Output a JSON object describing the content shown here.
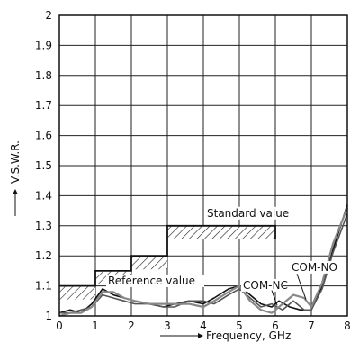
{
  "chart_data": {
    "type": "line",
    "xlabel": "Frequency, GHz",
    "ylabel": "V.S.W.R.",
    "xlim": [
      0,
      8
    ],
    "ylim": [
      1,
      2
    ],
    "x_ticks": [
      "0",
      "1",
      "2",
      "3",
      "4",
      "5",
      "6",
      "7",
      "8"
    ],
    "y_ticks": [
      "1",
      "1.1",
      "1.2",
      "1.3",
      "1.4",
      "1.5",
      "1.6",
      "1.7",
      "1.8",
      "1.9",
      "2"
    ],
    "grid": true,
    "standard_value": {
      "label": "Standard value",
      "steps": [
        {
          "x0": 0,
          "x1": 1,
          "y": 1.1
        },
        {
          "x0": 1,
          "x1": 2,
          "y": 1.15
        },
        {
          "x0": 2,
          "x1": 3,
          "y": 1.2
        },
        {
          "x0": 3,
          "x1": 6,
          "y": 1.3
        }
      ]
    },
    "series": [
      {
        "name": "Reference value",
        "color": "#111111",
        "x": [
          0,
          0.3,
          0.6,
          0.9,
          1.2,
          1.5,
          1.8,
          2.1,
          2.5,
          2.9,
          3.2,
          3.6,
          4.0,
          4.3,
          4.7,
          5.0,
          5.3,
          5.6,
          5.9,
          6.1,
          6.4,
          6.7,
          7.0,
          7.3,
          7.6,
          8.0
        ],
        "y": [
          1.01,
          1.02,
          1.01,
          1.04,
          1.09,
          1.07,
          1.06,
          1.05,
          1.04,
          1.03,
          1.04,
          1.05,
          1.04,
          1.06,
          1.09,
          1.1,
          1.07,
          1.04,
          1.03,
          1.05,
          1.03,
          1.02,
          1.02,
          1.1,
          1.22,
          1.37
        ]
      },
      {
        "name": "COM-NC",
        "color": "#555555",
        "x": [
          0,
          0.3,
          0.6,
          0.9,
          1.2,
          1.5,
          1.8,
          2.1,
          2.5,
          2.9,
          3.2,
          3.6,
          4.0,
          4.3,
          4.7,
          5.0,
          5.3,
          5.6,
          5.9,
          6.2,
          6.5,
          6.8,
          7.0,
          7.3,
          7.6,
          8.0
        ],
        "y": [
          1.01,
          1.01,
          1.02,
          1.03,
          1.07,
          1.06,
          1.05,
          1.04,
          1.04,
          1.03,
          1.03,
          1.05,
          1.05,
          1.04,
          1.07,
          1.09,
          1.06,
          1.03,
          1.04,
          1.02,
          1.05,
          1.02,
          1.02,
          1.09,
          1.21,
          1.34
        ]
      },
      {
        "name": "COM-NO",
        "color": "#888888",
        "x": [
          0,
          0.3,
          0.6,
          0.9,
          1.2,
          1.5,
          1.8,
          2.1,
          2.5,
          2.9,
          3.2,
          3.6,
          4.0,
          4.3,
          4.7,
          5.0,
          5.3,
          5.6,
          5.9,
          6.2,
          6.5,
          6.8,
          7.0,
          7.3,
          7.6,
          8.0
        ],
        "y": [
          1.0,
          1.01,
          1.01,
          1.03,
          1.08,
          1.08,
          1.06,
          1.05,
          1.04,
          1.04,
          1.04,
          1.04,
          1.03,
          1.05,
          1.08,
          1.1,
          1.05,
          1.02,
          1.01,
          1.04,
          1.07,
          1.06,
          1.03,
          1.11,
          1.24,
          1.36
        ]
      }
    ],
    "annotations": [
      {
        "text": "Standard value",
        "x": 4.1,
        "y": 1.33
      },
      {
        "text": "COM-NO",
        "x": 6.45,
        "y": 1.15
      },
      {
        "text": "COM-NC",
        "x": 5.1,
        "y": 1.09
      },
      {
        "text": "Reference value",
        "x": 1.35,
        "y": 1.105
      }
    ]
  }
}
